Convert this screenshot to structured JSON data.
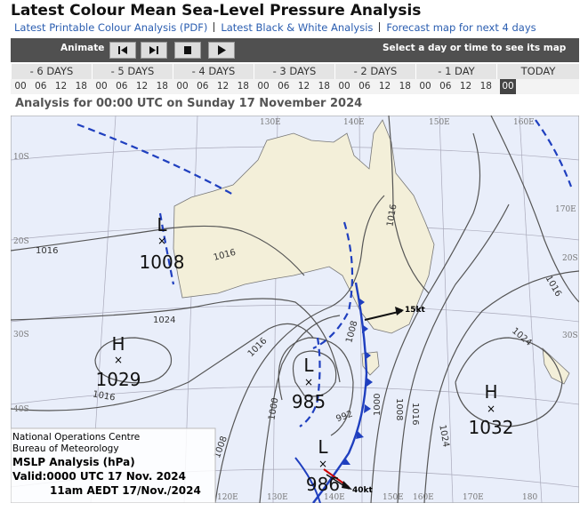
{
  "header": {
    "title": "Latest Colour Mean Sea-Level Pressure Analysis",
    "links": [
      "Latest Printable Colour Analysis (PDF)",
      "Latest Black & White Analysis",
      "Forecast map for next 4 days"
    ]
  },
  "toolbar": {
    "animate_label": "Animate",
    "hint": "Select a day or time to see its map"
  },
  "days": [
    {
      "label": "- 6 DAYS",
      "hours": [
        "00",
        "06",
        "12",
        "18"
      ]
    },
    {
      "label": "- 5 DAYS",
      "hours": [
        "00",
        "06",
        "12",
        "18"
      ]
    },
    {
      "label": "- 4 DAYS",
      "hours": [
        "00",
        "06",
        "12",
        "18"
      ]
    },
    {
      "label": "- 3 DAYS",
      "hours": [
        "00",
        "06",
        "12",
        "18"
      ]
    },
    {
      "label": "- 2 DAYS",
      "hours": [
        "00",
        "06",
        "12",
        "18"
      ]
    },
    {
      "label": "- 1 DAY",
      "hours": [
        "00",
        "06",
        "12",
        "18"
      ]
    },
    {
      "label": "TODAY",
      "hours": [
        "00"
      ]
    }
  ],
  "analysis_heading": "Analysis for 00:00 UTC on Sunday 17 November 2024",
  "map": {
    "latitude_labels": [
      "10S",
      "20S",
      "30S",
      "40S",
      "20S",
      "30S"
    ],
    "longitude_labels": [
      "130E",
      "140E",
      "150E",
      "160E",
      "170E",
      "120E",
      "130E",
      "140E",
      "150E",
      "160E",
      "170E",
      "180"
    ],
    "isobar_labels": [
      "1016",
      "1016",
      "1024",
      "1016",
      "1008",
      "1016",
      "1016",
      "1024",
      "1000",
      "1008",
      "1016",
      "1024",
      "992",
      "1000",
      "1008",
      "1016"
    ],
    "systems": [
      {
        "type": "L",
        "pressure": "1008"
      },
      {
        "type": "H",
        "pressure": "1029"
      },
      {
        "type": "L",
        "pressure": "985"
      },
      {
        "type": "H",
        "pressure": "1032"
      },
      {
        "type": "L",
        "pressure": "986"
      }
    ],
    "winds": [
      "15kt",
      "40kt"
    ],
    "info_box": [
      "National Operations Centre",
      "Bureau of Meteorology",
      "MSLP Analysis (hPa)",
      "Valid:0000 UTC 17 Nov. 2024",
      "11am AEDT 17/Nov./2024"
    ]
  }
}
